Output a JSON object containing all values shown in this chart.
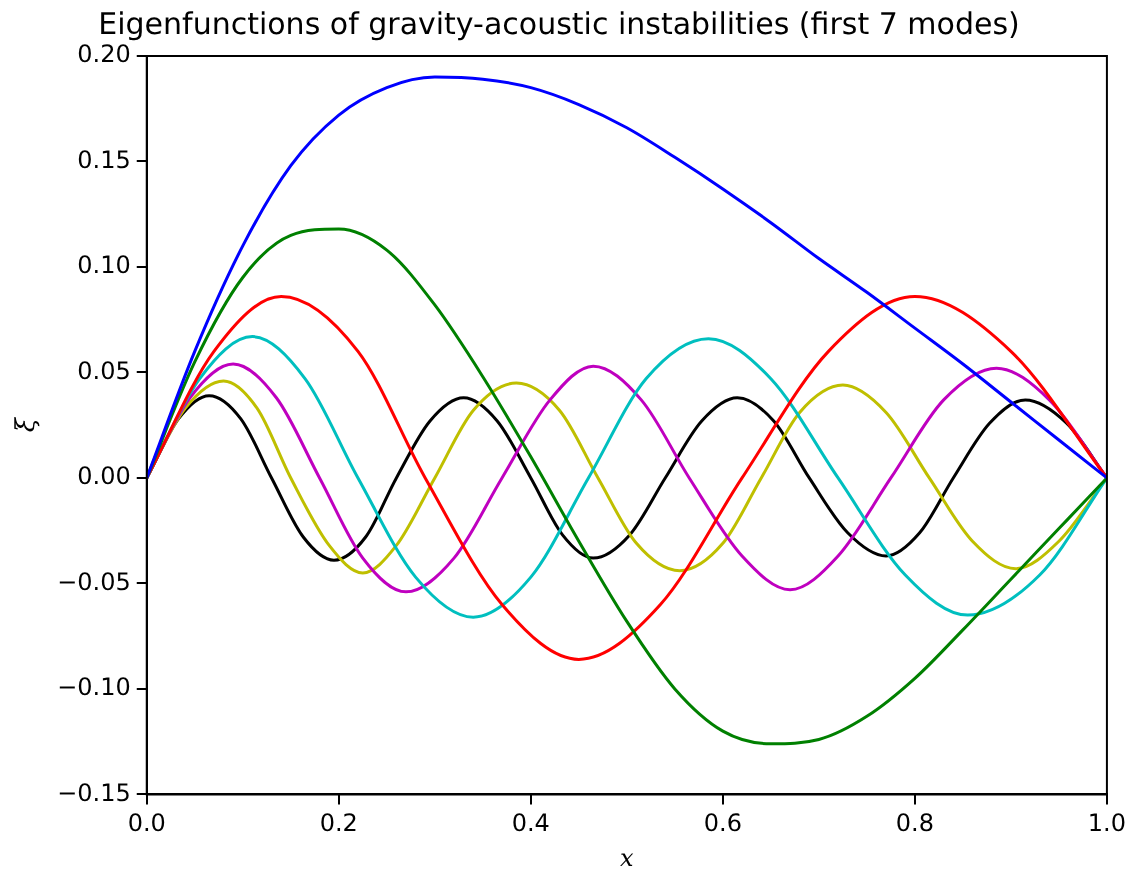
{
  "chart_data": {
    "type": "line",
    "title": "Eigenfunctions of gravity-acoustic instabilities (first 7 modes)",
    "xlabel": "x",
    "ylabel": "ξ",
    "xlim": [
      0,
      1
    ],
    "ylim": [
      -0.15,
      0.2
    ],
    "xticks": [
      {
        "value": 0,
        "label": "0.0"
      },
      {
        "value": 0.2,
        "label": "0.2"
      },
      {
        "value": 0.4,
        "label": "0.4"
      },
      {
        "value": 0.6,
        "label": "0.6"
      },
      {
        "value": 0.8,
        "label": "0.8"
      },
      {
        "value": 1,
        "label": "1.0"
      }
    ],
    "yticks": [
      {
        "value": -0.15,
        "label": "−0.15"
      },
      {
        "value": -0.1,
        "label": "−0.10"
      },
      {
        "value": -0.05,
        "label": "−0.05"
      },
      {
        "value": 0,
        "label": "0.00"
      },
      {
        "value": 0.05,
        "label": "0.05"
      },
      {
        "value": 0.1,
        "label": "0.10"
      },
      {
        "value": 0.15,
        "label": "0.15"
      },
      {
        "value": 0.2,
        "label": "0.20"
      }
    ],
    "grid": false,
    "legend": false,
    "marker": "none",
    "line_style": "solid",
    "series": [
      {
        "color": "#0000ff",
        "x": [
          0,
          0.05,
          0.1,
          0.15,
          0.2,
          0.25,
          0.3,
          0.35,
          0.4,
          0.45,
          0.5,
          0.55,
          0.6,
          0.65,
          0.7,
          0.75,
          0.8,
          0.85,
          0.9,
          0.95,
          1
        ],
        "values": [
          0,
          0.06,
          0.11,
          0.148,
          0.172,
          0.185,
          0.19,
          0.189,
          0.185,
          0.177,
          0.166,
          0.152,
          0.137,
          0.121,
          0.104,
          0.088,
          0.071,
          0.054,
          0.036,
          0.018,
          0
        ]
      },
      {
        "color": "#008000",
        "x": [
          0,
          0.05,
          0.1,
          0.15,
          0.2,
          0.25,
          0.3,
          0.35,
          0.4,
          0.45,
          0.5,
          0.55,
          0.6,
          0.65,
          0.7,
          0.75,
          0.8,
          0.85,
          0.9,
          0.95,
          1
        ],
        "values": [
          0,
          0.055,
          0.095,
          0.115,
          0.118,
          0.108,
          0.082,
          0.048,
          0.01,
          -0.03,
          -0.068,
          -0.1,
          -0.12,
          -0.126,
          -0.124,
          -0.113,
          -0.095,
          -0.072,
          -0.048,
          -0.024,
          0
        ]
      },
      {
        "color": "#ff0000",
        "x": [
          0,
          0.07,
          0.14,
          0.22,
          0.29,
          0.37,
          0.45,
          0.535,
          0.62,
          0.71,
          0.8,
          0.9,
          1
        ],
        "values": [
          0,
          0.06,
          0.086,
          0.06,
          0,
          -0.06,
          -0.086,
          -0.06,
          0,
          0.06,
          0.086,
          0.06,
          0
        ]
      },
      {
        "color": "#00bfbf",
        "x": [
          0,
          0.055,
          0.11,
          0.165,
          0.22,
          0.28,
          0.34,
          0.4,
          0.46,
          0.52,
          0.585,
          0.65,
          0.72,
          0.79,
          0.855,
          0.93,
          1
        ],
        "values": [
          0,
          0.047,
          0.067,
          0.047,
          0,
          -0.047,
          -0.066,
          -0.047,
          0,
          0.047,
          0.066,
          0.047,
          0,
          -0.046,
          -0.065,
          -0.046,
          0
        ]
      },
      {
        "color": "#bf00bf",
        "x": [
          0,
          0.045,
          0.09,
          0.135,
          0.18,
          0.225,
          0.27,
          0.32,
          0.37,
          0.42,
          0.465,
          0.515,
          0.565,
          0.62,
          0.67,
          0.72,
          0.775,
          0.83,
          0.885,
          0.94,
          1
        ],
        "values": [
          0,
          0.038,
          0.054,
          0.038,
          0,
          -0.038,
          -0.054,
          -0.038,
          0,
          0.037,
          0.053,
          0.037,
          0,
          -0.037,
          -0.053,
          -0.037,
          0,
          0.037,
          0.052,
          0.037,
          0
        ]
      },
      {
        "color": "#bfbf00",
        "x": [
          0,
          0.04,
          0.08,
          0.115,
          0.15,
          0.19,
          0.225,
          0.26,
          0.3,
          0.34,
          0.385,
          0.43,
          0.47,
          0.51,
          0.555,
          0.6,
          0.64,
          0.68,
          0.725,
          0.77,
          0.815,
          0.86,
          0.905,
          0.95,
          1
        ],
        "values": [
          0,
          0.033,
          0.046,
          0.033,
          0,
          -0.032,
          -0.045,
          -0.032,
          0,
          0.032,
          0.045,
          0.032,
          0,
          -0.031,
          -0.044,
          -0.031,
          0,
          0.031,
          0.044,
          0.031,
          0,
          -0.03,
          -0.043,
          -0.03,
          0
        ]
      },
      {
        "color": "#000000",
        "x": [
          0,
          0.033,
          0.065,
          0.098,
          0.13,
          0.163,
          0.195,
          0.228,
          0.26,
          0.295,
          0.33,
          0.365,
          0.4,
          0.433,
          0.465,
          0.503,
          0.54,
          0.578,
          0.615,
          0.653,
          0.69,
          0.73,
          0.77,
          0.805,
          0.84,
          0.878,
          0.915,
          0.958,
          1
        ],
        "values": [
          0,
          0.028,
          0.039,
          0.028,
          0,
          -0.028,
          -0.039,
          -0.028,
          0,
          0.027,
          0.038,
          0.027,
          0,
          -0.027,
          -0.038,
          -0.027,
          0,
          0.027,
          0.038,
          0.027,
          0,
          -0.026,
          -0.037,
          -0.026,
          0,
          0.026,
          0.037,
          0.026,
          0
        ]
      }
    ]
  }
}
